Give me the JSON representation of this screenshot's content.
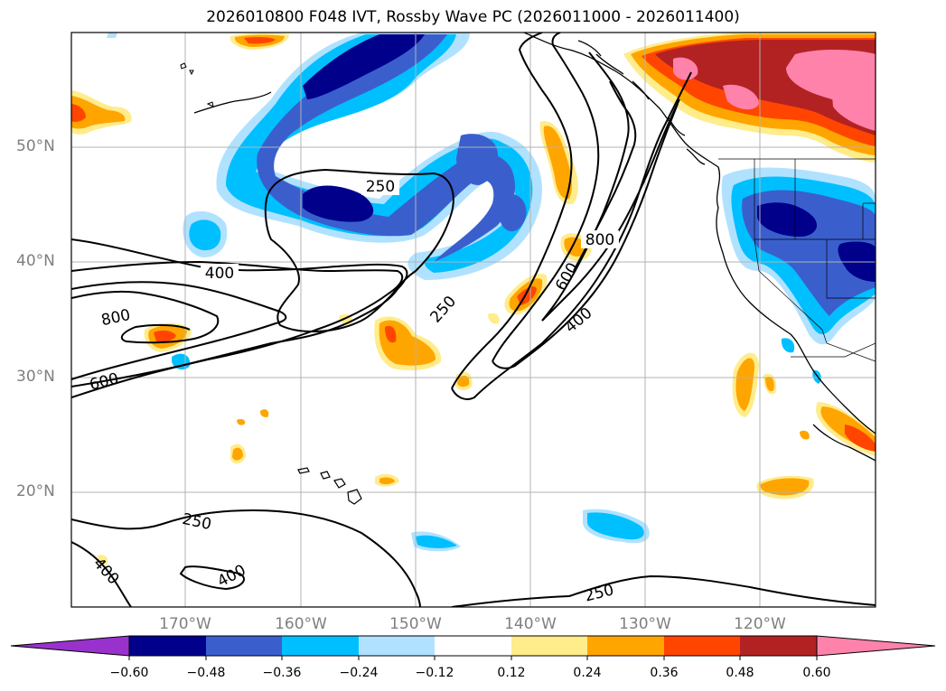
{
  "title": "2026010800 F048 IVT, Rossby Wave PC (2026011000 - 2026011400)",
  "lat_labels": [
    "50°N",
    "40°N",
    "30°N",
    "20°N"
  ],
  "lon_labels": [
    "170°W",
    "160°W",
    "150°W",
    "140°W",
    "130°W",
    "120°W"
  ],
  "contour_labels": [
    "250",
    "400",
    "800",
    "600",
    "250",
    "800",
    "600",
    "400",
    "250",
    "400",
    "400",
    "250"
  ],
  "colorbar": {
    "ticks": [
      "−0.60",
      "−0.48",
      "−0.36",
      "−0.24",
      "−0.12",
      "0.12",
      "0.24",
      "0.36",
      "0.48",
      "0.60"
    ],
    "colors": [
      "#9932cc",
      "#00008b",
      "#3a5fcd",
      "#00bfff",
      "#b0e2ff",
      "#ffffff",
      "#ffec8b",
      "#ffa500",
      "#ff4500",
      "#b22222",
      "#ff82ab"
    ]
  }
}
